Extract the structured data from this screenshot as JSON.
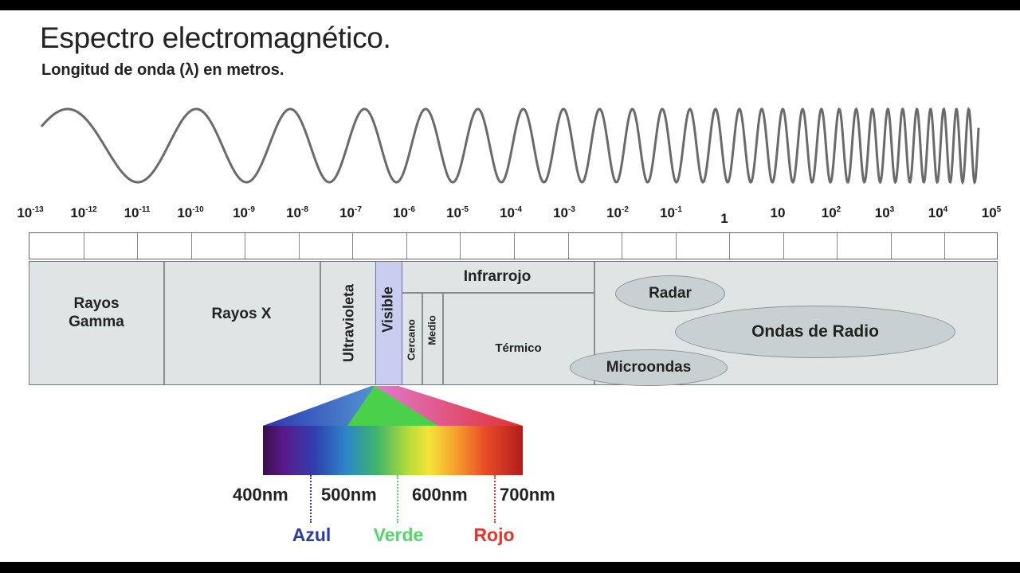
{
  "title": "Espectro electromagnético.",
  "subtitle": "Longitud de onda (λ) en metros.",
  "scale": {
    "ticks": [
      {
        "base": "10",
        "exp": "-13"
      },
      {
        "base": "10",
        "exp": "-12"
      },
      {
        "base": "10",
        "exp": "-11"
      },
      {
        "base": "10",
        "exp": "-10"
      },
      {
        "base": "10",
        "exp": "-9"
      },
      {
        "base": "10",
        "exp": "-8"
      },
      {
        "base": "10",
        "exp": "-7"
      },
      {
        "base": "10",
        "exp": "-6"
      },
      {
        "base": "10",
        "exp": "-5"
      },
      {
        "base": "10",
        "exp": "-4"
      },
      {
        "base": "10",
        "exp": "-3"
      },
      {
        "base": "10",
        "exp": "-2"
      },
      {
        "base": "10",
        "exp": "-1"
      },
      {
        "base": "1",
        "exp": ""
      },
      {
        "base": "10",
        "exp": ""
      },
      {
        "base": "10",
        "exp": "2"
      },
      {
        "base": "10",
        "exp": "3"
      },
      {
        "base": "10",
        "exp": "4"
      },
      {
        "base": "10",
        "exp": "5"
      }
    ]
  },
  "bands": {
    "gamma": "Rayos\nGamma",
    "xray": "Rayos X",
    "uv": "Ultravioleta",
    "visible": "Visible",
    "infrared": "Infrarrojo",
    "near": "Cercano",
    "mid": "Medio",
    "thermal": "Térmico",
    "radar": "Radar",
    "radio": "Ondas de Radio",
    "microwave": "Microondas"
  },
  "visible_detail": {
    "nm_labels": [
      "400nm",
      "500nm",
      "600nm",
      "700nm"
    ],
    "colors": [
      {
        "name": "Azul",
        "color": "#2b3aa8"
      },
      {
        "name": "Verde",
        "color": "#4fd86a"
      },
      {
        "name": "Rojo",
        "color": "#e8322a"
      }
    ]
  }
}
